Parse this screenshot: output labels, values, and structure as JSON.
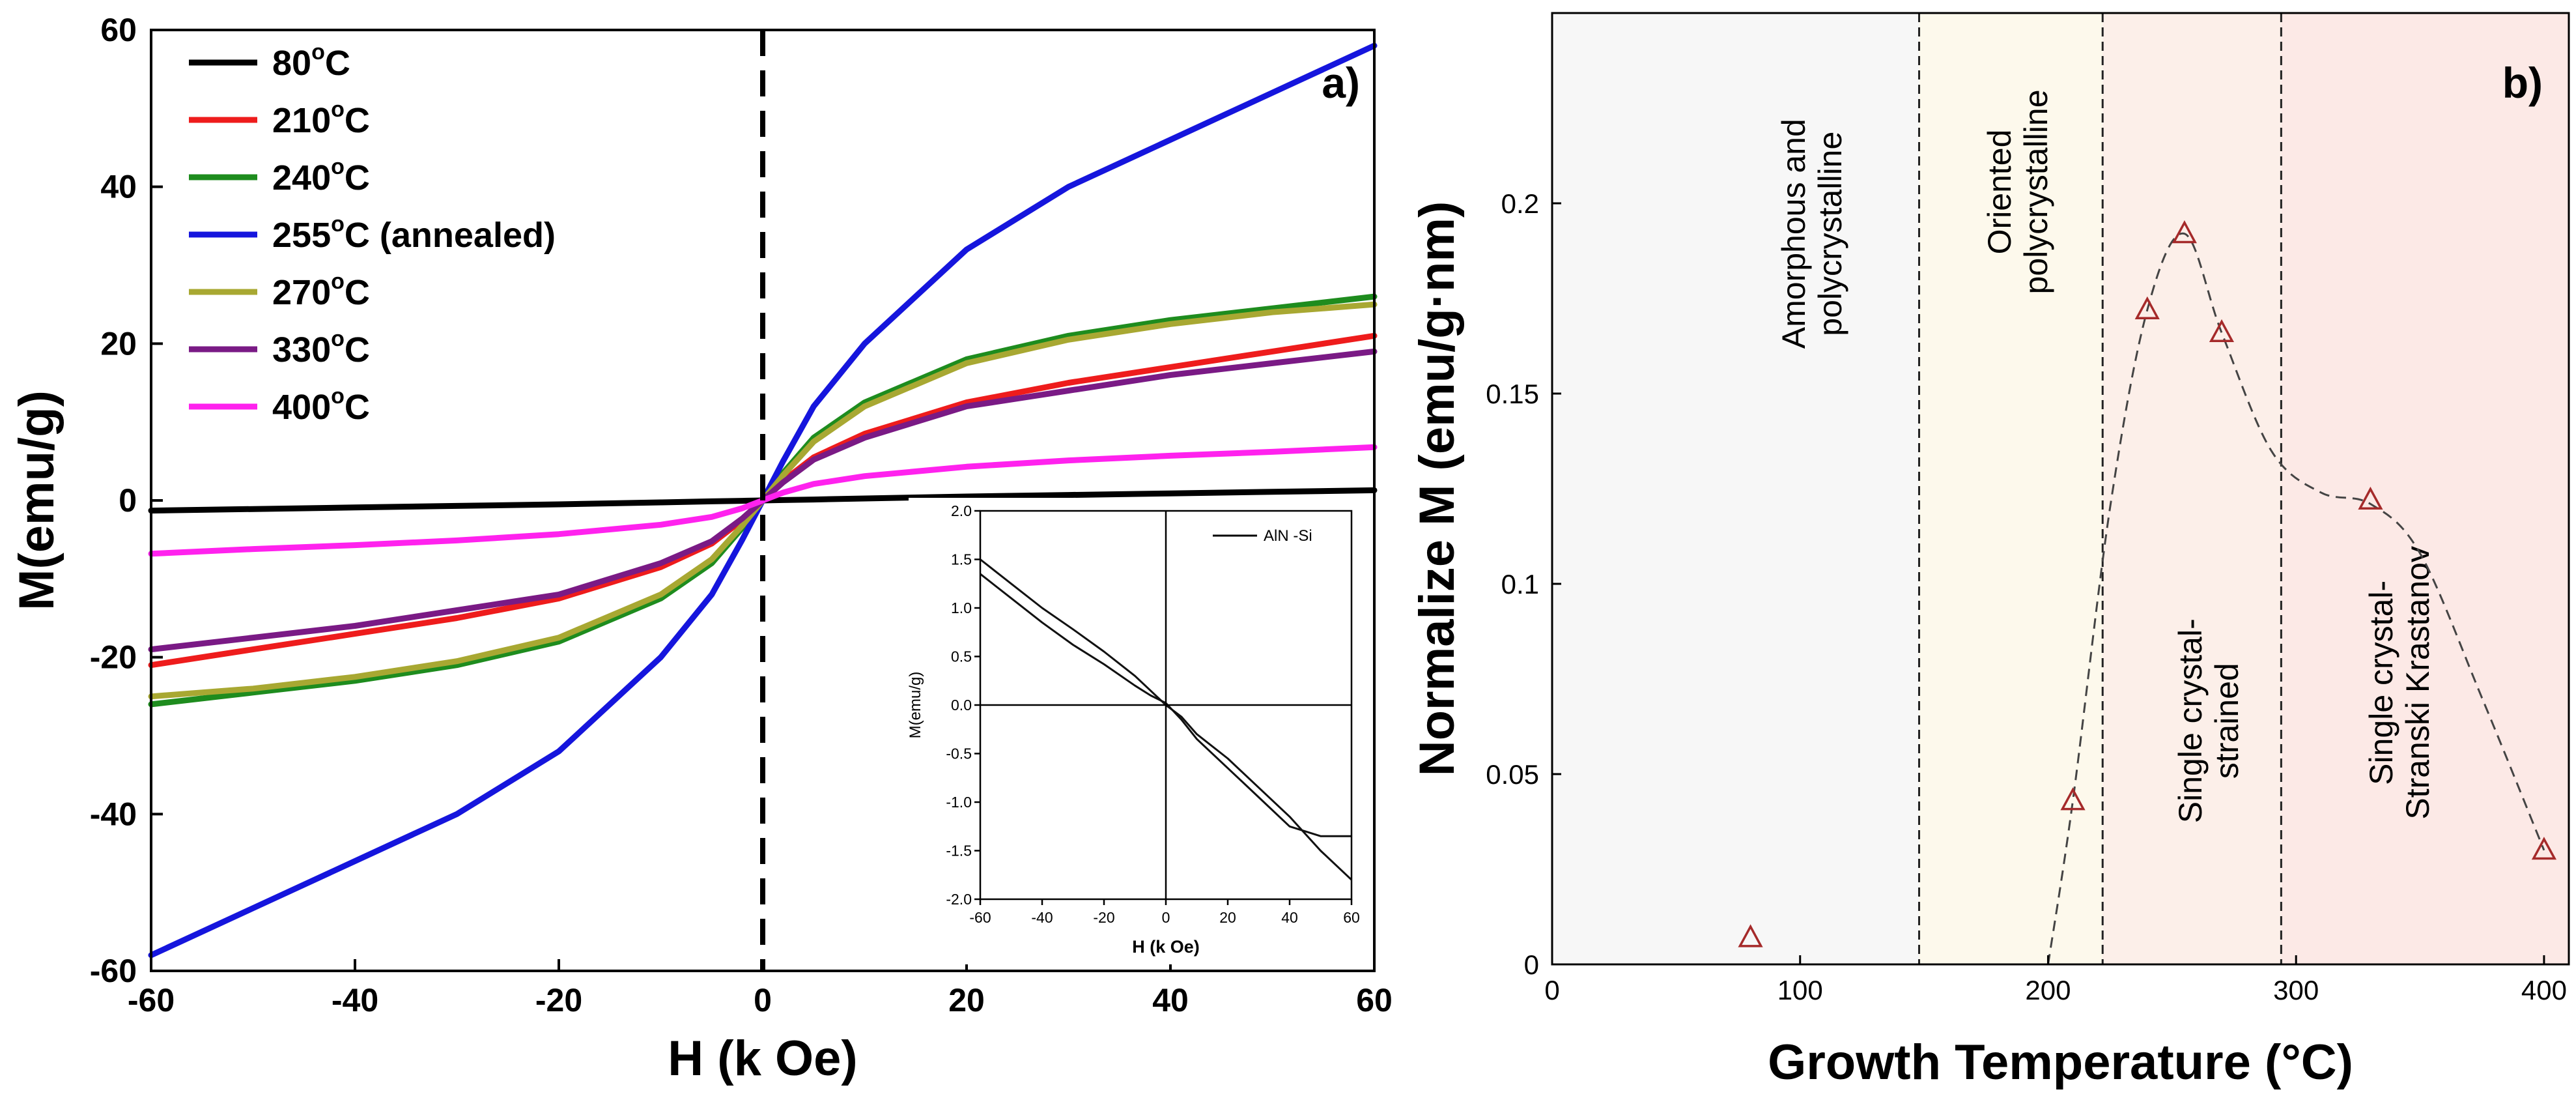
{
  "chart_data": [
    {
      "panel_label": "a)",
      "type": "line",
      "title": "",
      "xlabel": "H (k Oe)",
      "ylabel": "M(emu/g)",
      "xlim": [
        -60,
        60
      ],
      "ylim": [
        -60,
        60
      ],
      "xticks": [
        -60,
        -40,
        -20,
        0,
        20,
        40,
        60
      ],
      "yticks": [
        -60,
        -40,
        -20,
        0,
        20,
        40,
        60
      ],
      "grid": false,
      "legend_position": "top-left",
      "vertical_reference_line_x": 0,
      "x": [
        -60,
        -50,
        -40,
        -30,
        -20,
        -10,
        -5,
        -2,
        0,
        2,
        5,
        10,
        20,
        30,
        40,
        50,
        60
      ],
      "series": [
        {
          "name": "80",
          "label_suffix": "",
          "color": "#000000",
          "values": [
            -1.3,
            -1.1,
            -0.9,
            -0.7,
            -0.5,
            -0.25,
            -0.12,
            -0.05,
            0,
            0.05,
            0.12,
            0.25,
            0.5,
            0.7,
            0.9,
            1.1,
            1.3
          ]
        },
        {
          "name": "210",
          "label_suffix": "",
          "color": "#ee1c1c",
          "values": [
            -21,
            -19,
            -17,
            -15,
            -12.5,
            -8.5,
            -5.5,
            -2.5,
            0,
            2.5,
            5.5,
            8.5,
            12.5,
            15,
            17,
            19,
            21
          ]
        },
        {
          "name": "240",
          "label_suffix": "",
          "color": "#1e8c1e",
          "values": [
            -26,
            -24.5,
            -23,
            -21,
            -18,
            -12.5,
            -8,
            -3.5,
            0,
            3.5,
            8,
            12.5,
            18,
            21,
            23,
            24.5,
            26
          ]
        },
        {
          "name": "255",
          "label_suffix": " (annealed)",
          "color": "#1515dd",
          "values": [
            -58,
            -52,
            -46,
            -40,
            -32,
            -20,
            -12,
            -5,
            0,
            5,
            12,
            20,
            32,
            40,
            46,
            52,
            58
          ]
        },
        {
          "name": "270",
          "label_suffix": "",
          "color": "#a8a832",
          "values": [
            -25,
            -24,
            -22.5,
            -20.5,
            -17.5,
            -12,
            -7.5,
            -3.2,
            0,
            3.2,
            7.5,
            12,
            17.5,
            20.5,
            22.5,
            24,
            25
          ]
        },
        {
          "name": "330",
          "label_suffix": "",
          "color": "#7a1a85",
          "values": [
            -19,
            -17.5,
            -16,
            -14,
            -12,
            -8,
            -5.2,
            -2.3,
            0,
            2.3,
            5.2,
            8,
            12,
            14,
            16,
            17.5,
            19
          ]
        },
        {
          "name": "400",
          "label_suffix": "",
          "color": "#ff22ee",
          "values": [
            -6.8,
            -6.2,
            -5.7,
            -5.1,
            -4.3,
            -3.1,
            -2.1,
            -1,
            0,
            1,
            2.1,
            3.1,
            4.3,
            5.1,
            5.7,
            6.2,
            6.8
          ]
        }
      ],
      "legend_unit": "C",
      "legend_degree": "o",
      "inset": {
        "type": "line",
        "xlabel": "H (k Oe)",
        "ylabel": "M(emu/g)",
        "xlim": [
          -60,
          60
        ],
        "ylim": [
          -2.0,
          2.0
        ],
        "xticks": [
          -60,
          -40,
          -20,
          0,
          20,
          40,
          60
        ],
        "yticks": [
          -2.0,
          -1.5,
          -1.0,
          -0.5,
          0.0,
          0.5,
          1.0,
          1.5,
          2.0
        ],
        "legend_position": "top-right",
        "series": [
          {
            "name": "AlN -Si",
            "x": [
              -60,
              -50,
              -40,
              -30,
              -20,
              -10,
              -5,
              0,
              5,
              10,
              20,
              30,
              40,
              50,
              60
            ],
            "values": [
              1.5,
              1.25,
              1.0,
              0.78,
              0.55,
              0.3,
              0.15,
              0.0,
              -0.12,
              -0.3,
              -0.55,
              -0.85,
              -1.15,
              -1.5,
              -1.8
            ]
          },
          {
            "name": "",
            "x": [
              -60,
              -50,
              -40,
              -30,
              -20,
              -10,
              -5,
              0,
              5,
              10,
              20,
              30,
              40,
              50,
              60
            ],
            "values": [
              1.35,
              1.1,
              0.85,
              0.62,
              0.42,
              0.2,
              0.1,
              0.02,
              -0.15,
              -0.35,
              -0.65,
              -0.95,
              -1.25,
              -1.35,
              -1.35
            ]
          }
        ]
      }
    },
    {
      "panel_label": "b)",
      "type": "scatter",
      "title": "",
      "xlabel": "Growth Temperature (°C)",
      "ylabel": "Normalize M (emu/g·nm)",
      "xlim": [
        0,
        410
      ],
      "ylim": [
        0,
        0.25
      ],
      "xticks": [
        0,
        100,
        200,
        300,
        400
      ],
      "yticks": [
        0,
        0.05,
        0.1,
        0.15,
        0.2
      ],
      "ytick_labels": [
        "0",
        "0.05",
        "0.1",
        "0.15",
        "0.2"
      ],
      "grid": false,
      "points": {
        "x": [
          80,
          210,
          240,
          255,
          270,
          330,
          400
        ],
        "y": [
          0.007,
          0.043,
          0.172,
          0.192,
          0.166,
          0.122,
          0.03
        ]
      },
      "marker_color": "#a52a2a",
      "trend_line": {
        "x": [
          200,
          210,
          225,
          240,
          255,
          270,
          290,
          310,
          330,
          350,
          375,
          400
        ],
        "y": [
          0.0,
          0.043,
          0.12,
          0.172,
          0.192,
          0.166,
          0.135,
          0.124,
          0.121,
          0.108,
          0.07,
          0.03
        ]
      },
      "regions": [
        {
          "x0": 0,
          "x1": 148,
          "color": "#f7f7f7",
          "label_lines": [
            "Amorphous and",
            "polycrystalline"
          ]
        },
        {
          "x0": 148,
          "x1": 222,
          "color": "#fdf9ec",
          "label_lines": [
            "Oriented",
            "polycrystalline"
          ]
        },
        {
          "x0": 222,
          "x1": 294,
          "color": "#fcefe9",
          "label_lines": [
            "Single crystal-",
            "strained"
          ]
        },
        {
          "x0": 294,
          "x1": 410,
          "color": "#fce9e6",
          "label_lines": [
            "Single crystal-",
            "Stranski Krastanov"
          ]
        }
      ]
    }
  ]
}
